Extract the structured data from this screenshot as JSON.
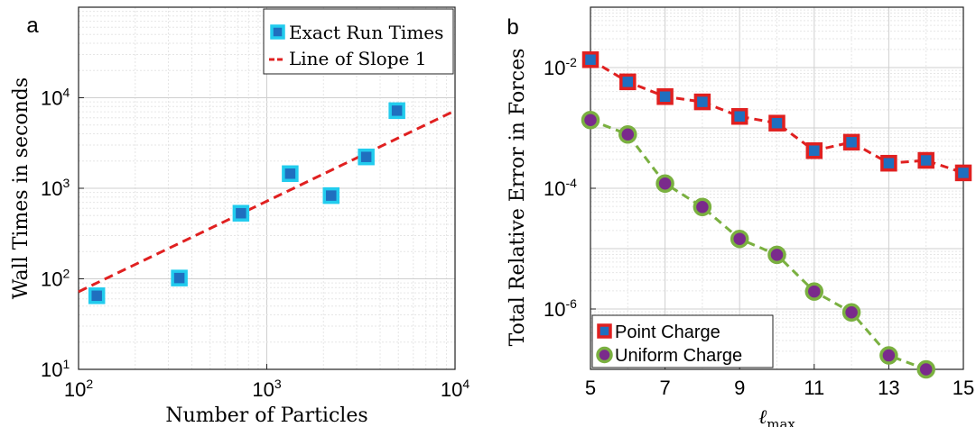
{
  "panels": {
    "a": {
      "letter": "a"
    },
    "b": {
      "letter": "b"
    }
  },
  "chart_data": [
    {
      "type": "scatter",
      "panel": "a",
      "xlabel": "Number of Particles",
      "ylabel": "Wall Times in seconds",
      "xscale": "log",
      "yscale": "log",
      "xlim": [
        100,
        10000
      ],
      "ylim": [
        10,
        100000
      ],
      "xticks": [
        100,
        1000,
        10000
      ],
      "yticks": [
        10,
        100,
        1000,
        10000
      ],
      "tick_base": "10",
      "tick_exponents_x": [
        "2",
        "3",
        "4"
      ],
      "tick_exponents_y": [
        "1",
        "2",
        "3",
        "4"
      ],
      "grid": true,
      "minor_grid": true,
      "legend_position": "top-right",
      "series": [
        {
          "name": "Exact Run Times",
          "kind": "markers",
          "marker": "square",
          "face_color": "#1f6fbf",
          "edge_color": "#22ccee",
          "x": [
            125,
            343,
            729,
            1331,
            2197,
            3375,
            4913
          ],
          "y": [
            65,
            102,
            530,
            1450,
            830,
            2220,
            7200
          ]
        },
        {
          "name": "Line of Slope 1",
          "kind": "dashed-line",
          "color": "#e02020",
          "x": [
            100,
            10000
          ],
          "y": [
            72,
            7200
          ]
        }
      ]
    },
    {
      "type": "line",
      "panel": "b",
      "xlabel": "ℓ",
      "xlabel_sub": "max",
      "ylabel": "Total Relative Error in Forces",
      "yscale": "log",
      "xlim": [
        5,
        15
      ],
      "ylim": [
        1e-07,
        0.1
      ],
      "xticks": [
        5,
        7,
        9,
        11,
        13,
        15
      ],
      "yticks": [
        1e-06,
        0.0001,
        0.01
      ],
      "tick_base": "10",
      "tick_exponents_y": [
        "-6",
        "-4",
        "-2"
      ],
      "grid": true,
      "minor_grid": true,
      "legend_position": "bottom-left",
      "series": [
        {
          "name": "Point Charge",
          "marker": "square",
          "face_color": "#1f6fbf",
          "edge_color": "#e02020",
          "line_color": "#e02020",
          "x": [
            5,
            6,
            7,
            8,
            9,
            10,
            11,
            12,
            13,
            14,
            15
          ],
          "y": [
            0.0135,
            0.0058,
            0.0033,
            0.0027,
            0.00155,
            0.0012,
            0.00042,
            0.00058,
            0.00026,
            0.00029,
            0.00018
          ]
        },
        {
          "name": "Uniform Charge",
          "marker": "circle",
          "face_color": "#7a2a8c",
          "edge_color": "#7ab040",
          "line_color": "#7ab040",
          "x": [
            5,
            6,
            7,
            8,
            9,
            10,
            11,
            12,
            13,
            14
          ],
          "y": [
            0.00135,
            0.00078,
            0.00012,
            4.9e-05,
            1.45e-05,
            7.9e-06,
            1.95e-06,
            8.8e-07,
            1.7e-07,
            1e-07
          ]
        }
      ]
    }
  ]
}
